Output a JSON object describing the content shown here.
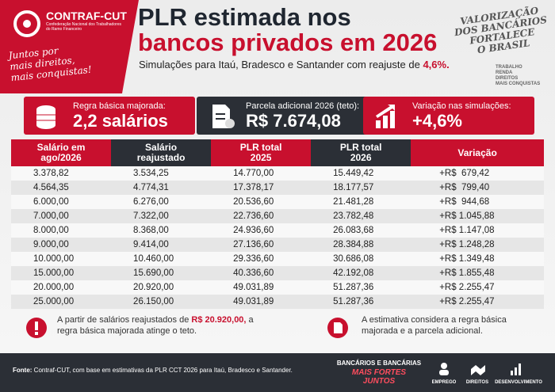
{
  "header": {
    "logo": "CONTRAF-CUT",
    "logo_sub": "Confederação Nacional dos Trabalhadores do Ramo Financeiro",
    "slogan": [
      "Juntos por",
      "mais direitos,",
      "mais conquistas!"
    ],
    "title": [
      "PLR estimada nos",
      "bancos privados em 2026"
    ],
    "subtitle": "Simulações para Itaú, Bradesco e Santander com reajuste de ",
    "subtitle_highlight": "4,6%.",
    "banner": [
      "VALORIZAÇÃO",
      "DOS BANCÁRIOS",
      "FORTALECE",
      "O BRASIL"
    ],
    "banner_small": [
      "TRABALHO",
      "RENDA",
      "DIREITOS",
      "MAIS CONQUISTAS"
    ]
  },
  "cards": [
    {
      "label": "Regra básica majorada:",
      "value": "2,2 salários"
    },
    {
      "label": "Parcela adicional 2026 (teto):",
      "value": "R$ 7.674,08"
    },
    {
      "label": "Variação nas simulações:",
      "value": "+4,6%"
    }
  ],
  "table": {
    "headers": [
      [
        "Salário em",
        "ago/2026"
      ],
      [
        "Salário",
        "reajustado"
      ],
      [
        "PLR total",
        "2025"
      ],
      [
        "PLR total",
        "2026"
      ],
      [
        "Variação"
      ]
    ],
    "rows": [
      [
        "3.378,82",
        "3.534,25",
        "14.770,00",
        "15.449,42",
        "+R$  679,42"
      ],
      [
        "4.564,35",
        "4.774,31",
        "17.378,17",
        "18.177,57",
        "+R$  799,40"
      ],
      [
        "6.000,00",
        "6.276,00",
        "20.536,60",
        "21.481,28",
        "+R$  944,68"
      ],
      [
        "7.000,00",
        "7.322,00",
        "22.736,60",
        "23.782,48",
        "+R$ 1.045,88"
      ],
      [
        "8.000,00",
        "8.368,00",
        "24.936,60",
        "26.083,68",
        "+R$ 1.147,08"
      ],
      [
        "9.000,00",
        "9.414,00",
        "27.136,60",
        "28.384,88",
        "+R$ 1.248,28"
      ],
      [
        "10.000,00",
        "10.460,00",
        "29.336,60",
        "30.686,08",
        "+R$ 1.349,48"
      ],
      [
        "15.000,00",
        "15.690,00",
        "40.336,60",
        "42.192,08",
        "+R$ 1.855,48"
      ],
      [
        "20.000,00",
        "20.920,00",
        "49.031,89",
        "51.287,36",
        "+R$ 2.255,47"
      ],
      [
        "25.000,00",
        "26.150,00",
        "49.031,89",
        "51.287,36",
        "+R$ 2.255,47"
      ]
    ]
  },
  "notes": [
    {
      "before": "A partir de salários reajustados de ",
      "highlight": "R$ 20.920,00,",
      "after": " a regra básica majorada atinge o teto."
    },
    {
      "before": "A estimativa considera a regra básica majorada e a parcela adicional."
    }
  ],
  "footer": {
    "source_label": "Fonte:",
    "source": " Contraf-CUT, com base em estimativas da PLR CCT 2026 para Itaú, Bradesco e Santander.",
    "brand": "BANCÁRIOS E BANCÁRIAS",
    "brand_slogan": "MAIS FORTES JUNTOS",
    "icons": [
      "EMPREGO",
      "DIREITOS",
      "DESENVOLVIMENTO"
    ]
  }
}
